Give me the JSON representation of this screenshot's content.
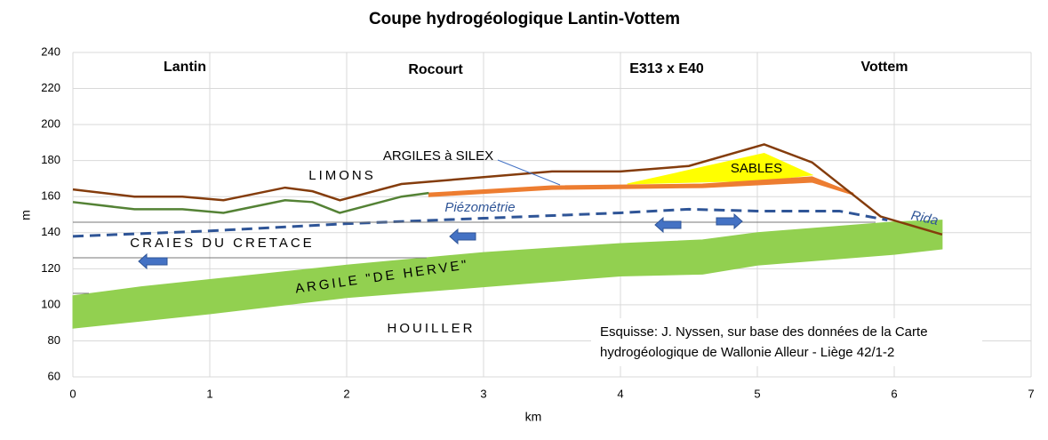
{
  "chart_data": {
    "type": "line",
    "title": "Coupe hydrogéologique Lantin-Vottem",
    "x_label": "km",
    "y_label": "m",
    "xlim": [
      0,
      7
    ],
    "ylim": [
      60,
      240
    ],
    "xticks": [
      0,
      1,
      2,
      3,
      4,
      5,
      6,
      7
    ],
    "yticks": [
      60,
      80,
      100,
      120,
      140,
      160,
      180,
      200,
      220,
      240
    ],
    "grid": true,
    "series": [
      {
        "color": "#92d050",
        "x": [
          0,
          0.5,
          1,
          2,
          3,
          4,
          4.6,
          5,
          6,
          6.35
        ],
        "values": [
          105,
          110,
          114,
          122,
          129,
          134,
          136,
          140,
          146,
          147
        ],
        "base": [
          87,
          91,
          95,
          104,
          110,
          116,
          117,
          122,
          128,
          131
        ]
      },
      {
        "color": "#ffff00",
        "x": [
          4.05,
          5.05,
          5.4
        ],
        "values": [
          167,
          184,
          172
        ],
        "base": [
          167,
          169,
          172
        ]
      },
      {
        "color": "#ed7d31",
        "x": [
          2.6,
          3.5,
          4.6,
          5.4,
          5.7
        ],
        "values": [
          162,
          166,
          167,
          171,
          162
        ],
        "base": [
          160,
          164,
          165,
          168,
          161
        ]
      },
      {
        "color": "#548235",
        "x": [
          0,
          0.45,
          0.8,
          1.1,
          1.55,
          1.75,
          1.95,
          2.4,
          2.6
        ],
        "values": [
          157,
          153,
          153,
          151,
          158,
          157,
          151,
          160,
          162
        ]
      },
      {
        "color": "#843c0c",
        "x": [
          0,
          0.45,
          0.8,
          1.1,
          1.55,
          1.75,
          1.95,
          2.4,
          3.5,
          4.0,
          4.5,
          5.05,
          5.4,
          5.7,
          5.9,
          6.35
        ],
        "values": [
          164,
          160,
          160,
          158,
          165,
          163,
          158,
          167,
          174,
          174,
          177,
          189,
          179,
          161,
          149,
          139
        ]
      },
      {
        "color": "#2f5597",
        "dashed": true,
        "x": [
          0,
          1,
          2,
          3,
          4,
          4.5,
          5,
          5.6,
          5.95
        ],
        "values": [
          138,
          141,
          145,
          148,
          151,
          153,
          152,
          152,
          147
        ]
      }
    ],
    "annotations": {
      "places": [
        "Lantin",
        "Rocourt",
        "E313 x E40",
        "Vottem"
      ],
      "limons": "LIMONS",
      "silex": "ARGILES à SILEX",
      "sables": "SABLES",
      "piezo": "Piézométrie",
      "rida": "Rida",
      "craies": "CRAIES DU CRETACE",
      "herve": "ARGILE \"DE HERVE\"",
      "houiller": "HOUILLER",
      "note": [
        "Esquisse: J. Nyssen, sur base des données de la Carte",
        "hydrogéologique de Wallonie Alleur - Liège 42/1-2"
      ]
    }
  }
}
